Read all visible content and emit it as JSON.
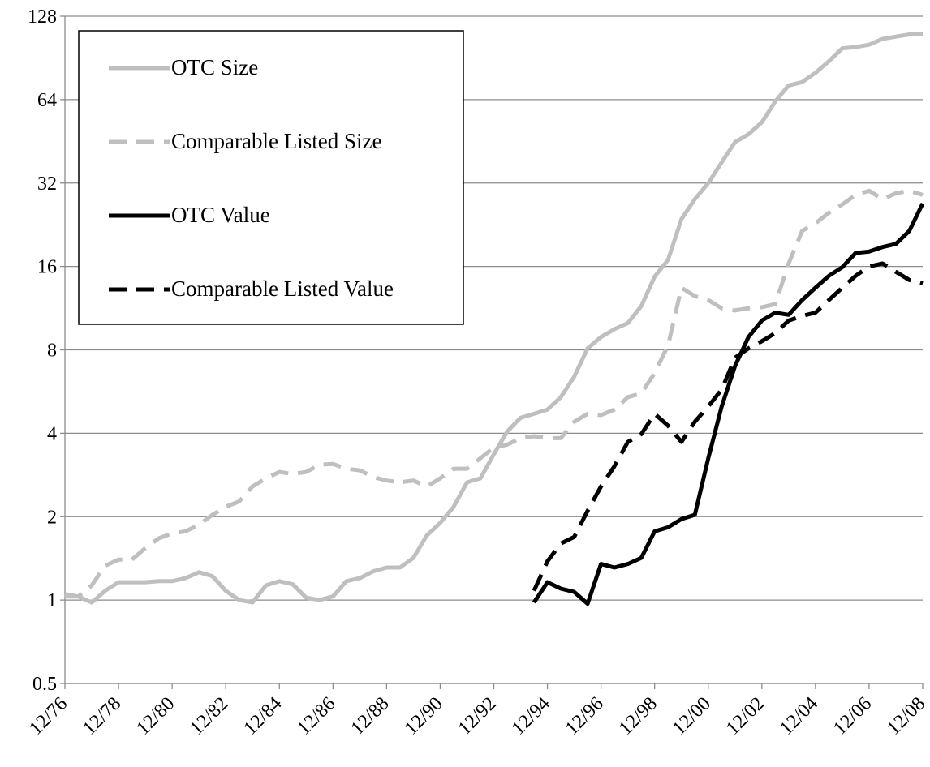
{
  "chart_data": {
    "type": "line",
    "log_scale": true,
    "grid": true,
    "legend": "upper-left",
    "categories": [
      "12/76",
      null,
      null,
      null,
      "12/78",
      null,
      null,
      null,
      "12/80",
      null,
      null,
      null,
      "12/82",
      null,
      null,
      null,
      "12/84",
      null,
      null,
      null,
      "12/86",
      null,
      null,
      null,
      "12/88",
      null,
      null,
      null,
      "12/90",
      null,
      null,
      null,
      "12/92",
      null,
      null,
      null,
      "12/94",
      null,
      null,
      null,
      "12/96",
      null,
      null,
      null,
      "12/98",
      null,
      null,
      null,
      "12/00",
      null,
      null,
      null,
      "12/02",
      null,
      null,
      null,
      "12/04",
      null,
      null,
      null,
      "12/06",
      null,
      null,
      null,
      "12/08"
    ],
    "ylim": [
      0.5,
      128
    ],
    "yticks": [
      0.5,
      1,
      2,
      4,
      8,
      16,
      32,
      64,
      128
    ],
    "series": [
      {
        "name": "OTC Size",
        "color": "#bfbfbf",
        "style": "solid",
        "values": [
          1.05,
          1.03,
          0.98,
          1.08,
          1.16,
          1.16,
          1.16,
          1.17,
          1.17,
          1.2,
          1.26,
          1.22,
          1.08,
          1.0,
          0.98,
          1.13,
          1.17,
          1.14,
          1.02,
          1.0,
          1.03,
          1.17,
          1.2,
          1.27,
          1.31,
          1.31,
          1.42,
          1.71,
          1.9,
          2.17,
          2.66,
          2.75,
          3.36,
          4.06,
          4.55,
          4.7,
          4.87,
          5.4,
          6.4,
          8.1,
          8.9,
          9.5,
          10,
          11.5,
          14.7,
          16.9,
          23.7,
          28,
          32,
          38,
          45,
          48,
          53,
          63,
          72,
          74,
          80,
          88,
          98,
          99,
          101,
          106,
          108,
          110,
          110
        ]
      },
      {
        "name": "Comparable Listed Size",
        "color": "#bfbfbf",
        "style": "dashed",
        "values": [
          1.03,
          1.03,
          1.13,
          1.33,
          1.4,
          1.4,
          1.54,
          1.67,
          1.74,
          1.77,
          1.87,
          2.03,
          2.17,
          2.27,
          2.57,
          2.75,
          2.9,
          2.85,
          2.9,
          3.08,
          3.1,
          2.98,
          2.94,
          2.78,
          2.7,
          2.66,
          2.7,
          2.57,
          2.75,
          2.98,
          2.98,
          3.25,
          3.55,
          3.64,
          3.84,
          3.9,
          3.84,
          3.84,
          4.4,
          4.7,
          4.65,
          4.87,
          5.4,
          5.57,
          6.6,
          8.3,
          13.4,
          12.5,
          12.1,
          11.3,
          11.1,
          11.3,
          11.4,
          11.7,
          16.4,
          21.5,
          22.9,
          25,
          26.8,
          29,
          30,
          28,
          29.4,
          30,
          29
        ]
      },
      {
        "name": "OTC Value",
        "color": "#000000",
        "style": "solid",
        "values": [
          null,
          null,
          null,
          null,
          null,
          null,
          null,
          null,
          null,
          null,
          null,
          null,
          null,
          null,
          null,
          null,
          null,
          null,
          null,
          null,
          null,
          null,
          null,
          null,
          null,
          null,
          null,
          null,
          null,
          null,
          null,
          null,
          null,
          null,
          null,
          0.98,
          1.16,
          1.1,
          1.07,
          0.97,
          1.35,
          1.31,
          1.35,
          1.42,
          1.77,
          1.83,
          1.96,
          2.03,
          3.25,
          5.0,
          7.0,
          8.9,
          10.2,
          10.9,
          10.7,
          12.1,
          13.4,
          14.8,
          15.9,
          17.9,
          18.1,
          18.8,
          19.3,
          21.5,
          27
        ]
      },
      {
        "name": "Comparable Listed Value",
        "color": "#000000",
        "style": "dashed",
        "values": [
          null,
          null,
          null,
          null,
          null,
          null,
          null,
          null,
          null,
          null,
          null,
          null,
          null,
          null,
          null,
          null,
          null,
          null,
          null,
          null,
          null,
          null,
          null,
          null,
          null,
          null,
          null,
          null,
          null,
          null,
          null,
          null,
          null,
          null,
          null,
          1.08,
          1.38,
          1.6,
          1.69,
          2.1,
          2.57,
          3.04,
          3.72,
          3.97,
          4.7,
          4.26,
          3.72,
          4.4,
          5.0,
          5.75,
          7.5,
          8.1,
          8.6,
          9.2,
          10.2,
          10.6,
          10.9,
          12.1,
          13.4,
          14.8,
          16,
          16.4,
          15.3,
          14.3,
          13.9
        ]
      }
    ]
  }
}
